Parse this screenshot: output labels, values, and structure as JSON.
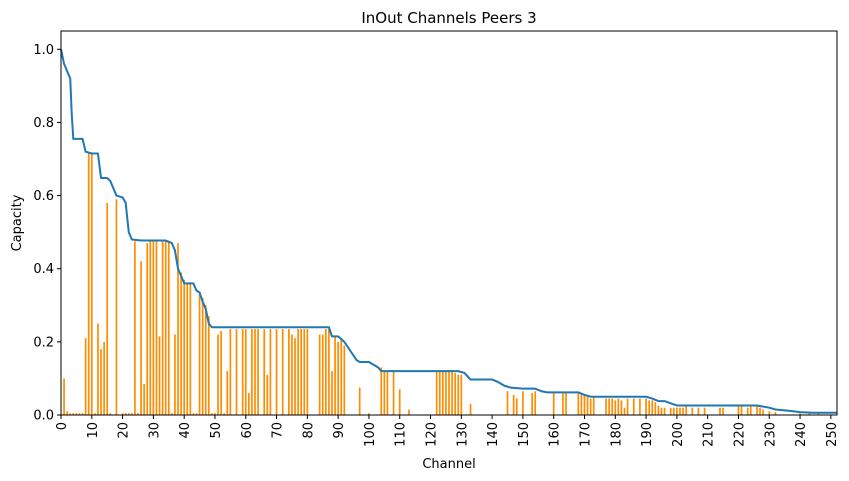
{
  "chart_data": {
    "type": "bar",
    "title": "InOut Channels Peers 3",
    "xlabel": "Channel",
    "ylabel": "Capacity",
    "xlim": [
      0,
      252
    ],
    "ylim": [
      0,
      1.05
    ],
    "x_ticks": [
      0,
      10,
      20,
      30,
      40,
      50,
      60,
      70,
      80,
      90,
      100,
      110,
      120,
      130,
      140,
      150,
      160,
      170,
      180,
      190,
      200,
      210,
      220,
      230,
      240,
      250
    ],
    "y_ticks": [
      0.0,
      0.2,
      0.4,
      0.6,
      0.8,
      1.0
    ],
    "y_tick_labels": [
      "0.0",
      "0.2",
      "0.4",
      "0.6",
      "0.8",
      "1.0"
    ],
    "grid": false,
    "legend": "none",
    "colors": {
      "bars": "#ff8c00",
      "line": "#1f77b4"
    },
    "series": [
      {
        "type": "line",
        "points": [
          [
            0,
            1.0
          ],
          [
            1,
            0.96
          ],
          [
            2,
            0.94
          ],
          [
            3,
            0.92
          ],
          [
            3.5,
            0.82
          ],
          [
            4,
            0.755
          ],
          [
            5,
            0.755
          ],
          [
            7,
            0.755
          ],
          [
            8,
            0.72
          ],
          [
            10,
            0.715
          ],
          [
            12,
            0.715
          ],
          [
            13,
            0.648
          ],
          [
            15,
            0.648
          ],
          [
            16,
            0.64
          ],
          [
            17,
            0.62
          ],
          [
            18,
            0.6
          ],
          [
            20,
            0.595
          ],
          [
            21,
            0.58
          ],
          [
            22,
            0.5
          ],
          [
            23,
            0.48
          ],
          [
            26,
            0.477
          ],
          [
            34,
            0.477
          ],
          [
            36,
            0.47
          ],
          [
            37,
            0.45
          ],
          [
            38,
            0.4
          ],
          [
            39,
            0.38
          ],
          [
            40,
            0.36
          ],
          [
            43,
            0.36
          ],
          [
            44,
            0.34
          ],
          [
            45,
            0.335
          ],
          [
            46,
            0.31
          ],
          [
            47,
            0.29
          ],
          [
            48,
            0.25
          ],
          [
            49,
            0.24
          ],
          [
            55,
            0.24
          ],
          [
            60,
            0.24
          ],
          [
            70,
            0.24
          ],
          [
            80,
            0.24
          ],
          [
            87,
            0.24
          ],
          [
            88,
            0.215
          ],
          [
            90,
            0.215
          ],
          [
            92,
            0.2
          ],
          [
            94,
            0.175
          ],
          [
            96,
            0.15
          ],
          [
            97,
            0.145
          ],
          [
            100,
            0.145
          ],
          [
            102,
            0.135
          ],
          [
            103,
            0.13
          ],
          [
            104,
            0.12
          ],
          [
            110,
            0.12
          ],
          [
            120,
            0.12
          ],
          [
            129,
            0.12
          ],
          [
            131,
            0.115
          ],
          [
            133,
            0.097
          ],
          [
            140,
            0.097
          ],
          [
            142,
            0.09
          ],
          [
            144,
            0.08
          ],
          [
            146,
            0.075
          ],
          [
            150,
            0.072
          ],
          [
            154,
            0.072
          ],
          [
            156,
            0.065
          ],
          [
            158,
            0.062
          ],
          [
            168,
            0.062
          ],
          [
            170,
            0.055
          ],
          [
            172,
            0.05
          ],
          [
            180,
            0.05
          ],
          [
            190,
            0.05
          ],
          [
            192,
            0.045
          ],
          [
            194,
            0.038
          ],
          [
            196,
            0.038
          ],
          [
            198,
            0.032
          ],
          [
            200,
            0.026
          ],
          [
            210,
            0.026
          ],
          [
            220,
            0.026
          ],
          [
            226,
            0.026
          ],
          [
            230,
            0.02
          ],
          [
            232,
            0.015
          ],
          [
            236,
            0.012
          ],
          [
            238,
            0.01
          ],
          [
            240,
            0.008
          ],
          [
            244,
            0.006
          ],
          [
            252,
            0.006
          ]
        ]
      },
      {
        "type": "bar",
        "points": [
          [
            1,
            0.1
          ],
          [
            2,
            0.01
          ],
          [
            3,
            0.005
          ],
          [
            4,
            0.005
          ],
          [
            5,
            0.005
          ],
          [
            6,
            0.005
          ],
          [
            7,
            0.005
          ],
          [
            8,
            0.21
          ],
          [
            9,
            0.715
          ],
          [
            10,
            0.715
          ],
          [
            11,
            0.005
          ],
          [
            12,
            0.25
          ],
          [
            13,
            0.18
          ],
          [
            14,
            0.2
          ],
          [
            15,
            0.58
          ],
          [
            16,
            0.005
          ],
          [
            18,
            0.59
          ],
          [
            20,
            0.005
          ],
          [
            21,
            0.005
          ],
          [
            22,
            0.005
          ],
          [
            23,
            0.005
          ],
          [
            24,
            0.475
          ],
          [
            25,
            0.005
          ],
          [
            26,
            0.42
          ],
          [
            27,
            0.085
          ],
          [
            28,
            0.47
          ],
          [
            29,
            0.475
          ],
          [
            30,
            0.475
          ],
          [
            31,
            0.475
          ],
          [
            32,
            0.215
          ],
          [
            33,
            0.475
          ],
          [
            34,
            0.475
          ],
          [
            35,
            0.475
          ],
          [
            36,
            0.005
          ],
          [
            37,
            0.22
          ],
          [
            38,
            0.47
          ],
          [
            39,
            0.39
          ],
          [
            40,
            0.37
          ],
          [
            41,
            0.36
          ],
          [
            42,
            0.36
          ],
          [
            43,
            0.005
          ],
          [
            44,
            0.005
          ],
          [
            45,
            0.33
          ],
          [
            46,
            0.32
          ],
          [
            47,
            0.3
          ],
          [
            48,
            0.27
          ],
          [
            49,
            0.005
          ],
          [
            50,
            0.005
          ],
          [
            51,
            0.22
          ],
          [
            52,
            0.23
          ],
          [
            53,
            0.005
          ],
          [
            54,
            0.12
          ],
          [
            55,
            0.235
          ],
          [
            57,
            0.235
          ],
          [
            59,
            0.235
          ],
          [
            60,
            0.235
          ],
          [
            61,
            0.06
          ],
          [
            62,
            0.235
          ],
          [
            63,
            0.235
          ],
          [
            64,
            0.235
          ],
          [
            66,
            0.235
          ],
          [
            67,
            0.11
          ],
          [
            68,
            0.235
          ],
          [
            70,
            0.235
          ],
          [
            72,
            0.235
          ],
          [
            74,
            0.235
          ],
          [
            75,
            0.22
          ],
          [
            76,
            0.21
          ],
          [
            77,
            0.235
          ],
          [
            78,
            0.235
          ],
          [
            79,
            0.235
          ],
          [
            80,
            0.235
          ],
          [
            84,
            0.22
          ],
          [
            85,
            0.22
          ],
          [
            86,
            0.235
          ],
          [
            87,
            0.235
          ],
          [
            88,
            0.12
          ],
          [
            89,
            0.215
          ],
          [
            90,
            0.2
          ],
          [
            91,
            0.21
          ],
          [
            92,
            0.19
          ],
          [
            97,
            0.075
          ],
          [
            100,
            0.005
          ],
          [
            104,
            0.13
          ],
          [
            105,
            0.12
          ],
          [
            106,
            0.12
          ],
          [
            108,
            0.12
          ],
          [
            110,
            0.07
          ],
          [
            113,
            0.015
          ],
          [
            122,
            0.12
          ],
          [
            123,
            0.12
          ],
          [
            124,
            0.12
          ],
          [
            125,
            0.12
          ],
          [
            126,
            0.12
          ],
          [
            127,
            0.12
          ],
          [
            128,
            0.115
          ],
          [
            129,
            0.11
          ],
          [
            130,
            0.11
          ],
          [
            133,
            0.03
          ],
          [
            145,
            0.065
          ],
          [
            147,
            0.055
          ],
          [
            148,
            0.045
          ],
          [
            150,
            0.065
          ],
          [
            153,
            0.06
          ],
          [
            154,
            0.065
          ],
          [
            160,
            0.06
          ],
          [
            163,
            0.06
          ],
          [
            164,
            0.06
          ],
          [
            168,
            0.06
          ],
          [
            169,
            0.06
          ],
          [
            170,
            0.055
          ],
          [
            171,
            0.05
          ],
          [
            172,
            0.045
          ],
          [
            173,
            0.05
          ],
          [
            177,
            0.045
          ],
          [
            178,
            0.045
          ],
          [
            179,
            0.045
          ],
          [
            180,
            0.04
          ],
          [
            181,
            0.045
          ],
          [
            182,
            0.04
          ],
          [
            183,
            0.02
          ],
          [
            184,
            0.045
          ],
          [
            186,
            0.045
          ],
          [
            188,
            0.045
          ],
          [
            190,
            0.045
          ],
          [
            191,
            0.04
          ],
          [
            192,
            0.04
          ],
          [
            193,
            0.035
          ],
          [
            194,
            0.025
          ],
          [
            195,
            0.02
          ],
          [
            196,
            0.02
          ],
          [
            198,
            0.02
          ],
          [
            199,
            0.02
          ],
          [
            200,
            0.02
          ],
          [
            201,
            0.02
          ],
          [
            202,
            0.02
          ],
          [
            203,
            0.025
          ],
          [
            205,
            0.02
          ],
          [
            207,
            0.02
          ],
          [
            209,
            0.02
          ],
          [
            214,
            0.02
          ],
          [
            215,
            0.02
          ],
          [
            220,
            0.025
          ],
          [
            221,
            0.025
          ],
          [
            223,
            0.02
          ],
          [
            224,
            0.025
          ],
          [
            226,
            0.025
          ],
          [
            227,
            0.02
          ],
          [
            228,
            0.015
          ],
          [
            230,
            0.01
          ],
          [
            232,
            0.008
          ],
          [
            240,
            0.005
          ],
          [
            243,
            0.005
          ],
          [
            246,
            0.005
          ]
        ]
      }
    ]
  }
}
